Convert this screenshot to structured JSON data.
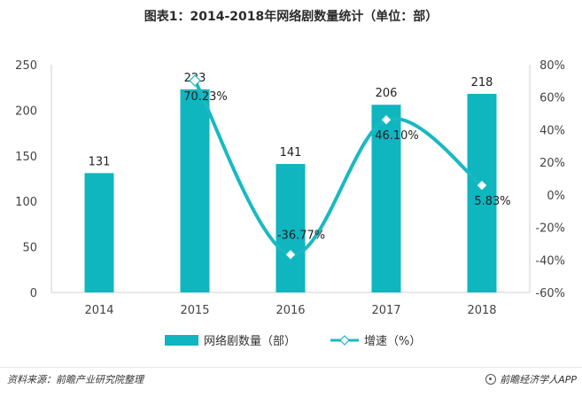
{
  "title": "图表1：2014-2018年网络剧数量统计（单位：部）",
  "colors": {
    "bar": "#0fb5bf",
    "line": "#19b9c2",
    "marker_fill": "#ffffff"
  },
  "chart_data": {
    "type": "bar",
    "categories": [
      "2014",
      "2015",
      "2016",
      "2017",
      "2018"
    ],
    "series": [
      {
        "name": "网络剧数量（部）",
        "kind": "bar",
        "axis": "left",
        "values": [
          131,
          223,
          141,
          206,
          218
        ],
        "labels": [
          "131",
          "223",
          "141",
          "206",
          "218"
        ]
      },
      {
        "name": "增速（%）",
        "kind": "line",
        "axis": "right",
        "values": [
          null,
          70.23,
          -36.77,
          46.1,
          5.83
        ],
        "labels": [
          "",
          "70.23%",
          "-36.77%",
          "46.10%",
          "5.83%"
        ]
      }
    ],
    "y_left": {
      "min": 0,
      "max": 250,
      "ticks": [
        "0",
        "50",
        "100",
        "150",
        "200",
        "250"
      ]
    },
    "y_right": {
      "min": -60,
      "max": 80,
      "ticks": [
        "-60%",
        "-40%",
        "-20%",
        "0%",
        "20%",
        "40%",
        "60%",
        "80%"
      ]
    },
    "grid": false,
    "legend_position": "bottom"
  },
  "footer": {
    "source": "资料来源：前瞻产业研究院整理",
    "brand": "前瞻经济学人APP"
  }
}
